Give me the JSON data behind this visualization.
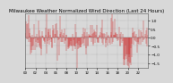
{
  "title": "Milwaukee Weather Normalized Wind Direction (Last 24 Hours)",
  "title_fontsize": 4.0,
  "background_color": "#d8d8d8",
  "plot_bg_color": "#d8d8d8",
  "line_color": "#cc0000",
  "ylim": [
    -1.8,
    1.4
  ],
  "yticks": [
    -1.5,
    -1.0,
    -0.5,
    0.0,
    0.5,
    1.0
  ],
  "ytick_fontsize": 3.0,
  "xtick_fontsize": 2.8,
  "n_points": 288,
  "seed": 42
}
